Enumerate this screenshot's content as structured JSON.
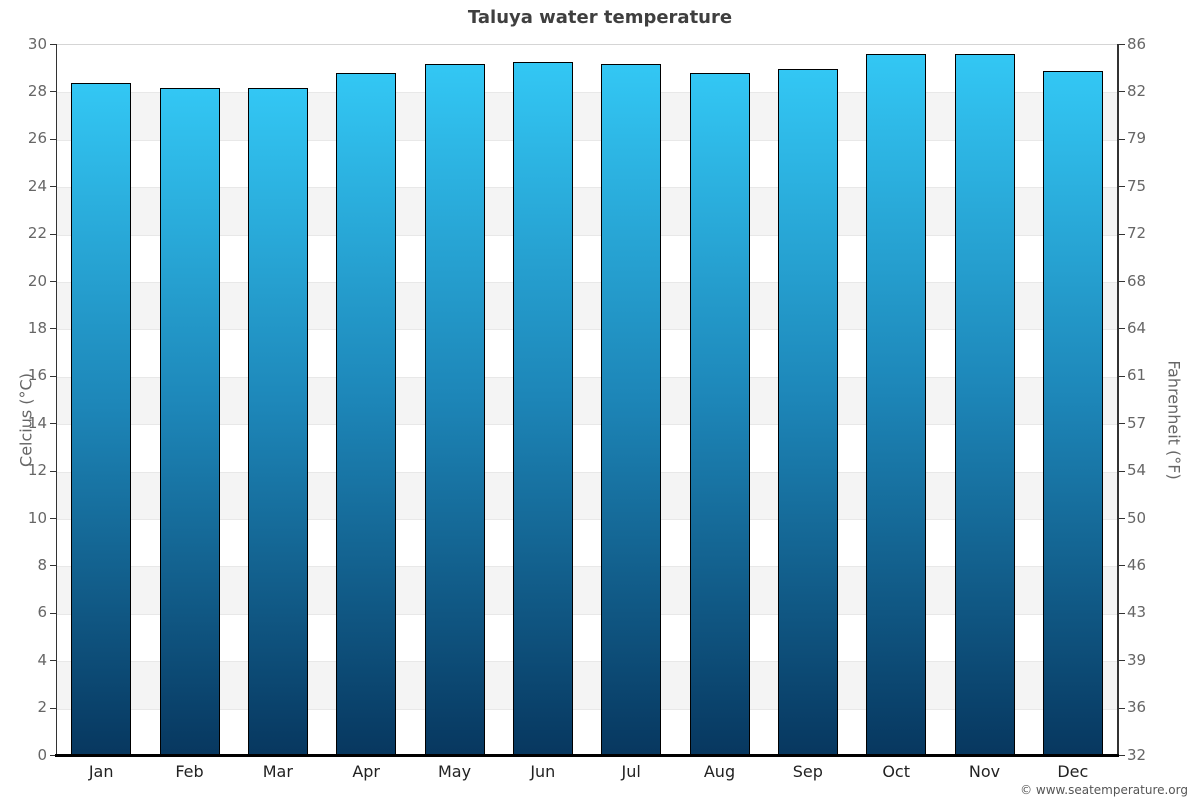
{
  "chart_data": {
    "type": "bar",
    "title": "Taluya water temperature",
    "categories": [
      "Jan",
      "Feb",
      "Mar",
      "Apr",
      "May",
      "Jun",
      "Jul",
      "Aug",
      "Sep",
      "Oct",
      "Nov",
      "Dec"
    ],
    "values": [
      28.4,
      28.2,
      28.2,
      28.8,
      29.2,
      29.3,
      29.2,
      28.8,
      29.0,
      29.6,
      29.6,
      28.9
    ],
    "value_unit": "°C",
    "ylabel_left": "Celcius (°C)",
    "ylabel_right": "Fahrenheit (°F)",
    "xlabel": "",
    "ylim": [
      0,
      30
    ],
    "ytick_step": 2,
    "yticks": [
      {
        "c": "0",
        "f": "32"
      },
      {
        "c": "2",
        "f": "36"
      },
      {
        "c": "4",
        "f": "39"
      },
      {
        "c": "6",
        "f": "43"
      },
      {
        "c": "8",
        "f": "46"
      },
      {
        "c": "10",
        "f": "50"
      },
      {
        "c": "12",
        "f": "54"
      },
      {
        "c": "14",
        "f": "57"
      },
      {
        "c": "16",
        "f": "61"
      },
      {
        "c": "18",
        "f": "64"
      },
      {
        "c": "20",
        "f": "68"
      },
      {
        "c": "22",
        "f": "72"
      },
      {
        "c": "24",
        "f": "75"
      },
      {
        "c": "26",
        "f": "79"
      },
      {
        "c": "28",
        "f": "82"
      },
      {
        "c": "30",
        "f": "86"
      }
    ],
    "grid": "alternating horizontal bands every 2 degrees",
    "legend": "none",
    "colors": {
      "bar_gradient_top": "#33c7f4",
      "bar_gradient_mid": "#1d86b8",
      "bar_gradient_bottom": "#07375f",
      "bar_border": "#000000",
      "band_gray": "#f4f4f4",
      "band_white": "#ffffff",
      "gridline": "#e8e8e8",
      "y_axis_line": "#333333",
      "x_axis_line": "#000000",
      "tick_label": "#666666",
      "month_label": "#222222",
      "title": "#3f3f3f",
      "copyright": "#555555"
    }
  },
  "footer": {
    "copyright": "© www.seatemperature.org"
  }
}
